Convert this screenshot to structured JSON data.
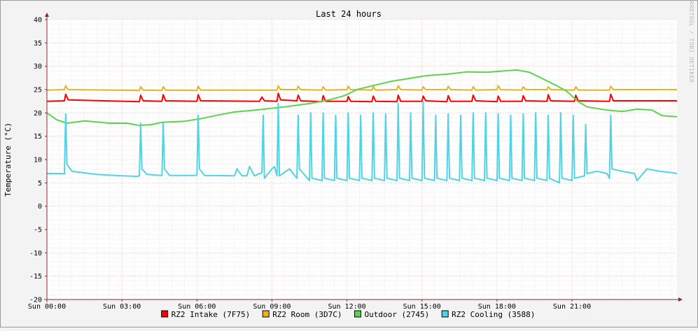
{
  "chart_data": {
    "type": "line",
    "title": "Last 24 hours",
    "ylabel": "Temperature (°C)",
    "xlabel": "",
    "ylim": [
      -20,
      40
    ],
    "y_ticks": [
      40,
      35,
      30,
      25,
      20,
      15,
      10,
      5,
      0,
      -5,
      -10,
      -15,
      -20
    ],
    "x_range_hours": [
      0,
      25.2
    ],
    "x_ticks": [
      {
        "hour": 0,
        "label": "Sun 00:00"
      },
      {
        "hour": 3,
        "label": "Sun 03:00"
      },
      {
        "hour": 6,
        "label": "Sun 06:00"
      },
      {
        "hour": 9,
        "label": "Sun 09:00"
      },
      {
        "hour": 12,
        "label": "Sun 12:00"
      },
      {
        "hour": 15,
        "label": "Sun 15:00"
      },
      {
        "hour": 18,
        "label": "Sun 18:00"
      },
      {
        "hour": 21,
        "label": "Sun 21:00"
      }
    ],
    "grid": true,
    "legend_position": "bottom",
    "watermark": "RRDTOOL / TOBI OETIKER",
    "series": [
      {
        "name": "RZ2 Intake (7F75)",
        "color": "#ff0000",
        "points": [
          [
            0,
            22.5
          ],
          [
            0.7,
            22.6
          ],
          [
            0.75,
            24.0
          ],
          [
            0.85,
            22.8
          ],
          [
            3.7,
            22.4
          ],
          [
            3.75,
            23.8
          ],
          [
            3.85,
            22.6
          ],
          [
            4.6,
            22.5
          ],
          [
            4.65,
            23.9
          ],
          [
            4.75,
            22.6
          ],
          [
            6.0,
            22.5
          ],
          [
            6.05,
            23.9
          ],
          [
            6.15,
            22.6
          ],
          [
            8.5,
            22.5
          ],
          [
            8.6,
            23.4
          ],
          [
            8.7,
            22.6
          ],
          [
            9.2,
            22.5
          ],
          [
            9.25,
            24.2
          ],
          [
            9.35,
            22.8
          ],
          [
            10.0,
            22.6
          ],
          [
            10.05,
            23.8
          ],
          [
            10.15,
            22.6
          ],
          [
            11.0,
            22.4
          ],
          [
            11.05,
            23.7
          ],
          [
            11.15,
            22.5
          ],
          [
            12.0,
            22.5
          ],
          [
            12.05,
            23.5
          ],
          [
            12.15,
            22.5
          ],
          [
            13.0,
            22.4
          ],
          [
            13.05,
            23.6
          ],
          [
            13.15,
            22.5
          ],
          [
            14.0,
            22.4
          ],
          [
            14.05,
            23.8
          ],
          [
            14.15,
            22.5
          ],
          [
            15.0,
            22.5
          ],
          [
            15.05,
            23.6
          ],
          [
            15.15,
            22.6
          ],
          [
            16.0,
            22.4
          ],
          [
            16.05,
            23.7
          ],
          [
            16.15,
            22.5
          ],
          [
            17.0,
            22.5
          ],
          [
            17.05,
            23.8
          ],
          [
            17.15,
            22.6
          ],
          [
            18.0,
            22.4
          ],
          [
            18.05,
            23.6
          ],
          [
            18.15,
            22.5
          ],
          [
            19.0,
            22.5
          ],
          [
            19.05,
            23.7
          ],
          [
            19.15,
            22.6
          ],
          [
            20.0,
            22.5
          ],
          [
            20.05,
            23.9
          ],
          [
            20.15,
            22.6
          ],
          [
            21.1,
            22.5
          ],
          [
            21.15,
            23.8
          ],
          [
            21.25,
            22.6
          ],
          [
            22.5,
            22.5
          ],
          [
            22.55,
            24.0
          ],
          [
            22.65,
            22.6
          ],
          [
            24.0,
            22.6
          ],
          [
            25.2,
            22.6
          ]
        ]
      },
      {
        "name": "RZ2 Room (3D7C)",
        "color": "#e6b422",
        "points": [
          [
            0,
            24.9
          ],
          [
            0.7,
            25.0
          ],
          [
            0.75,
            25.8
          ],
          [
            0.85,
            25.0
          ],
          [
            3.7,
            24.8
          ],
          [
            3.75,
            25.6
          ],
          [
            3.85,
            24.9
          ],
          [
            4.6,
            24.8
          ],
          [
            4.65,
            25.6
          ],
          [
            4.75,
            24.9
          ],
          [
            6.0,
            24.8
          ],
          [
            6.05,
            25.7
          ],
          [
            6.15,
            24.9
          ],
          [
            9.2,
            24.9
          ],
          [
            9.25,
            25.8
          ],
          [
            9.35,
            25.0
          ],
          [
            10.0,
            25.0
          ],
          [
            10.05,
            25.7
          ],
          [
            10.15,
            25.0
          ],
          [
            11.0,
            24.9
          ],
          [
            11.05,
            25.6
          ],
          [
            11.15,
            24.9
          ],
          [
            12.0,
            25.0
          ],
          [
            12.05,
            25.7
          ],
          [
            12.15,
            25.0
          ],
          [
            13.0,
            24.9
          ],
          [
            13.05,
            25.6
          ],
          [
            13.15,
            24.9
          ],
          [
            14.0,
            25.0
          ],
          [
            14.05,
            25.8
          ],
          [
            14.15,
            25.0
          ],
          [
            15.0,
            24.9
          ],
          [
            15.05,
            25.6
          ],
          [
            15.15,
            25.0
          ],
          [
            16.0,
            25.0
          ],
          [
            16.05,
            25.7
          ],
          [
            16.15,
            25.0
          ],
          [
            17.0,
            24.9
          ],
          [
            17.05,
            25.6
          ],
          [
            17.15,
            24.9
          ],
          [
            18.0,
            25.0
          ],
          [
            18.05,
            25.8
          ],
          [
            18.15,
            25.0
          ],
          [
            19.0,
            24.9
          ],
          [
            19.05,
            25.6
          ],
          [
            19.15,
            25.0
          ],
          [
            20.0,
            25.0
          ],
          [
            20.05,
            25.6
          ],
          [
            20.15,
            25.0
          ],
          [
            21.1,
            24.9
          ],
          [
            21.15,
            25.6
          ],
          [
            21.25,
            24.9
          ],
          [
            22.5,
            24.9
          ],
          [
            22.55,
            25.7
          ],
          [
            22.65,
            25.0
          ],
          [
            25.2,
            25.0
          ]
        ]
      },
      {
        "name": "Outdoor (2745)",
        "color": "#5ad44a",
        "points": [
          [
            0,
            20.0
          ],
          [
            0.4,
            18.5
          ],
          [
            0.8,
            17.8
          ],
          [
            1.5,
            18.3
          ],
          [
            2.5,
            17.8
          ],
          [
            3.2,
            17.8
          ],
          [
            3.7,
            17.3
          ],
          [
            4.2,
            17.5
          ],
          [
            4.6,
            18.0
          ],
          [
            5.5,
            18.2
          ],
          [
            6.2,
            18.8
          ],
          [
            6.8,
            19.5
          ],
          [
            7.5,
            20.2
          ],
          [
            8.5,
            20.7
          ],
          [
            9.5,
            21.3
          ],
          [
            10.5,
            22.0
          ],
          [
            11.3,
            22.8
          ],
          [
            11.9,
            23.7
          ],
          [
            12.4,
            25.0
          ],
          [
            13.0,
            25.8
          ],
          [
            13.8,
            26.8
          ],
          [
            14.5,
            27.4
          ],
          [
            15.2,
            28.0
          ],
          [
            16.0,
            28.3
          ],
          [
            16.8,
            28.8
          ],
          [
            17.6,
            28.7
          ],
          [
            18.3,
            29.0
          ],
          [
            18.8,
            29.2
          ],
          [
            19.3,
            28.7
          ],
          [
            19.8,
            27.4
          ],
          [
            20.4,
            25.8
          ],
          [
            20.8,
            24.6
          ],
          [
            21.2,
            22.6
          ],
          [
            21.6,
            21.3
          ],
          [
            22.4,
            20.6
          ],
          [
            23.0,
            20.3
          ],
          [
            23.6,
            20.8
          ],
          [
            24.2,
            20.6
          ],
          [
            24.6,
            19.4
          ],
          [
            25.2,
            19.2
          ]
        ]
      },
      {
        "name": "RZ2 Cooling (3588)",
        "color": "#4fd3e6",
        "points": [
          [
            0,
            7.0
          ],
          [
            0.6,
            7.0
          ],
          [
            0.7,
            6.9
          ],
          [
            0.75,
            19.8
          ],
          [
            0.8,
            9.0
          ],
          [
            1.0,
            7.5
          ],
          [
            2.0,
            6.8
          ],
          [
            3.0,
            6.5
          ],
          [
            3.6,
            6.4
          ],
          [
            3.7,
            6.5
          ],
          [
            3.75,
            17.8
          ],
          [
            3.8,
            8.0
          ],
          [
            4.0,
            6.8
          ],
          [
            4.6,
            6.6
          ],
          [
            4.65,
            17.8
          ],
          [
            4.7,
            8.0
          ],
          [
            4.9,
            6.6
          ],
          [
            5.9,
            6.6
          ],
          [
            6.0,
            6.7
          ],
          [
            6.05,
            19.5
          ],
          [
            6.1,
            8.0
          ],
          [
            6.3,
            6.6
          ],
          [
            7.5,
            6.5
          ],
          [
            7.6,
            8.0
          ],
          [
            7.8,
            6.5
          ],
          [
            8.0,
            6.5
          ],
          [
            8.1,
            8.5
          ],
          [
            8.3,
            6.5
          ],
          [
            8.6,
            7.2
          ],
          [
            8.65,
            19.5
          ],
          [
            8.7,
            6.0
          ],
          [
            9.0,
            8.0
          ],
          [
            9.1,
            8.5
          ],
          [
            9.2,
            6.5
          ],
          [
            9.25,
            22.0
          ],
          [
            9.3,
            6.5
          ],
          [
            9.7,
            8.0
          ],
          [
            10.0,
            6.0
          ],
          [
            10.05,
            19.5
          ],
          [
            10.1,
            8.0
          ],
          [
            10.5,
            5.5
          ],
          [
            10.55,
            20.0
          ],
          [
            10.6,
            6.0
          ],
          [
            11.0,
            5.5
          ],
          [
            11.05,
            20.0
          ],
          [
            11.1,
            6.0
          ],
          [
            11.5,
            5.5
          ],
          [
            11.55,
            19.5
          ],
          [
            11.6,
            6.0
          ],
          [
            12.0,
            5.5
          ],
          [
            12.05,
            20.0
          ],
          [
            12.1,
            6.0
          ],
          [
            12.5,
            5.5
          ],
          [
            12.55,
            19.5
          ],
          [
            12.6,
            6.0
          ],
          [
            13.0,
            5.5
          ],
          [
            13.05,
            20.0
          ],
          [
            13.1,
            6.0
          ],
          [
            13.5,
            5.5
          ],
          [
            13.55,
            19.8
          ],
          [
            13.6,
            6.0
          ],
          [
            14.0,
            5.5
          ],
          [
            14.05,
            22.0
          ],
          [
            14.1,
            6.0
          ],
          [
            14.5,
            5.5
          ],
          [
            14.55,
            20.0
          ],
          [
            14.6,
            6.0
          ],
          [
            15.0,
            5.5
          ],
          [
            15.05,
            22.5
          ],
          [
            15.1,
            6.0
          ],
          [
            15.5,
            5.5
          ],
          [
            15.55,
            19.5
          ],
          [
            15.6,
            6.0
          ],
          [
            16.0,
            5.5
          ],
          [
            16.05,
            19.8
          ],
          [
            16.1,
            6.0
          ],
          [
            16.5,
            5.5
          ],
          [
            16.55,
            19.5
          ],
          [
            16.6,
            6.0
          ],
          [
            17.0,
            5.5
          ],
          [
            17.05,
            20.0
          ],
          [
            17.1,
            6.0
          ],
          [
            17.5,
            5.5
          ],
          [
            17.55,
            20.0
          ],
          [
            17.6,
            6.0
          ],
          [
            18.0,
            5.5
          ],
          [
            18.05,
            19.8
          ],
          [
            18.1,
            6.0
          ],
          [
            18.5,
            5.5
          ],
          [
            18.55,
            19.5
          ],
          [
            18.6,
            6.0
          ],
          [
            19.0,
            5.5
          ],
          [
            19.05,
            19.8
          ],
          [
            19.1,
            6.0
          ],
          [
            19.5,
            5.5
          ],
          [
            19.55,
            20.0
          ],
          [
            19.6,
            6.0
          ],
          [
            20.0,
            5.5
          ],
          [
            20.05,
            19.5
          ],
          [
            20.1,
            6.0
          ],
          [
            20.5,
            5.0
          ],
          [
            20.55,
            20.0
          ],
          [
            20.6,
            6.0
          ],
          [
            21.0,
            5.5
          ],
          [
            21.05,
            19.5
          ],
          [
            21.1,
            6.0
          ],
          [
            21.5,
            6.5
          ],
          [
            21.55,
            17.5
          ],
          [
            21.6,
            7.0
          ],
          [
            22.0,
            7.5
          ],
          [
            22.4,
            7.0
          ],
          [
            22.5,
            6.0
          ],
          [
            22.55,
            19.5
          ],
          [
            22.6,
            8.0
          ],
          [
            23.0,
            7.5
          ],
          [
            23.5,
            7.0
          ],
          [
            23.6,
            5.5
          ],
          [
            24.0,
            8.0
          ],
          [
            24.5,
            7.5
          ],
          [
            25.0,
            7.2
          ],
          [
            25.2,
            7.0
          ]
        ]
      }
    ]
  }
}
